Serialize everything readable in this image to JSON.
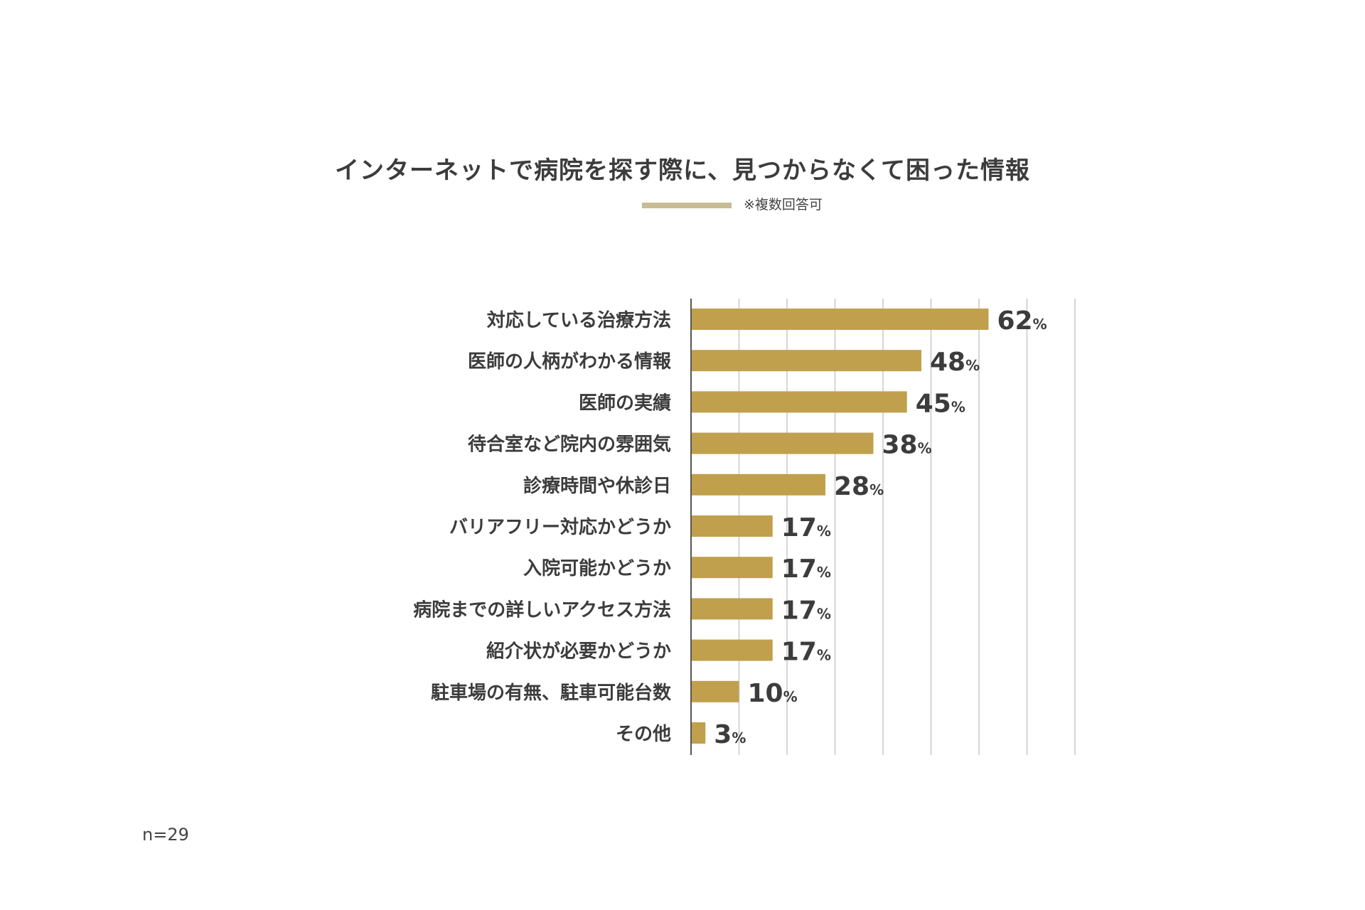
{
  "chart_data": {
    "type": "bar",
    "orientation": "horizontal",
    "title": "インターネットで病院を探す際に、見つからなくて困った情報",
    "note": "※複数回答可",
    "sample_size": "n=29",
    "unit": "%",
    "categories": [
      "対応している治療方法",
      "医師の人柄がわかる情報",
      "医師の実績",
      "待合室など院内の雰囲気",
      "診療時間や休診日",
      "バリアフリー対応かどうか",
      "入院可能かどうか",
      "病院までの詳しいアクセス方法",
      "紹介状が必要かどうか",
      "駐車場の有無、駐車可能台数",
      "その他"
    ],
    "values": [
      62,
      48,
      45,
      38,
      28,
      17,
      17,
      17,
      17,
      10,
      3
    ],
    "xlim": [
      0,
      80
    ],
    "grid": true,
    "colors": {
      "bar": "#c0a04c",
      "grid": "#c8c8c8",
      "axis": "#555555",
      "accent_line": "#c8bc95",
      "text": "#3c3c3c"
    }
  }
}
